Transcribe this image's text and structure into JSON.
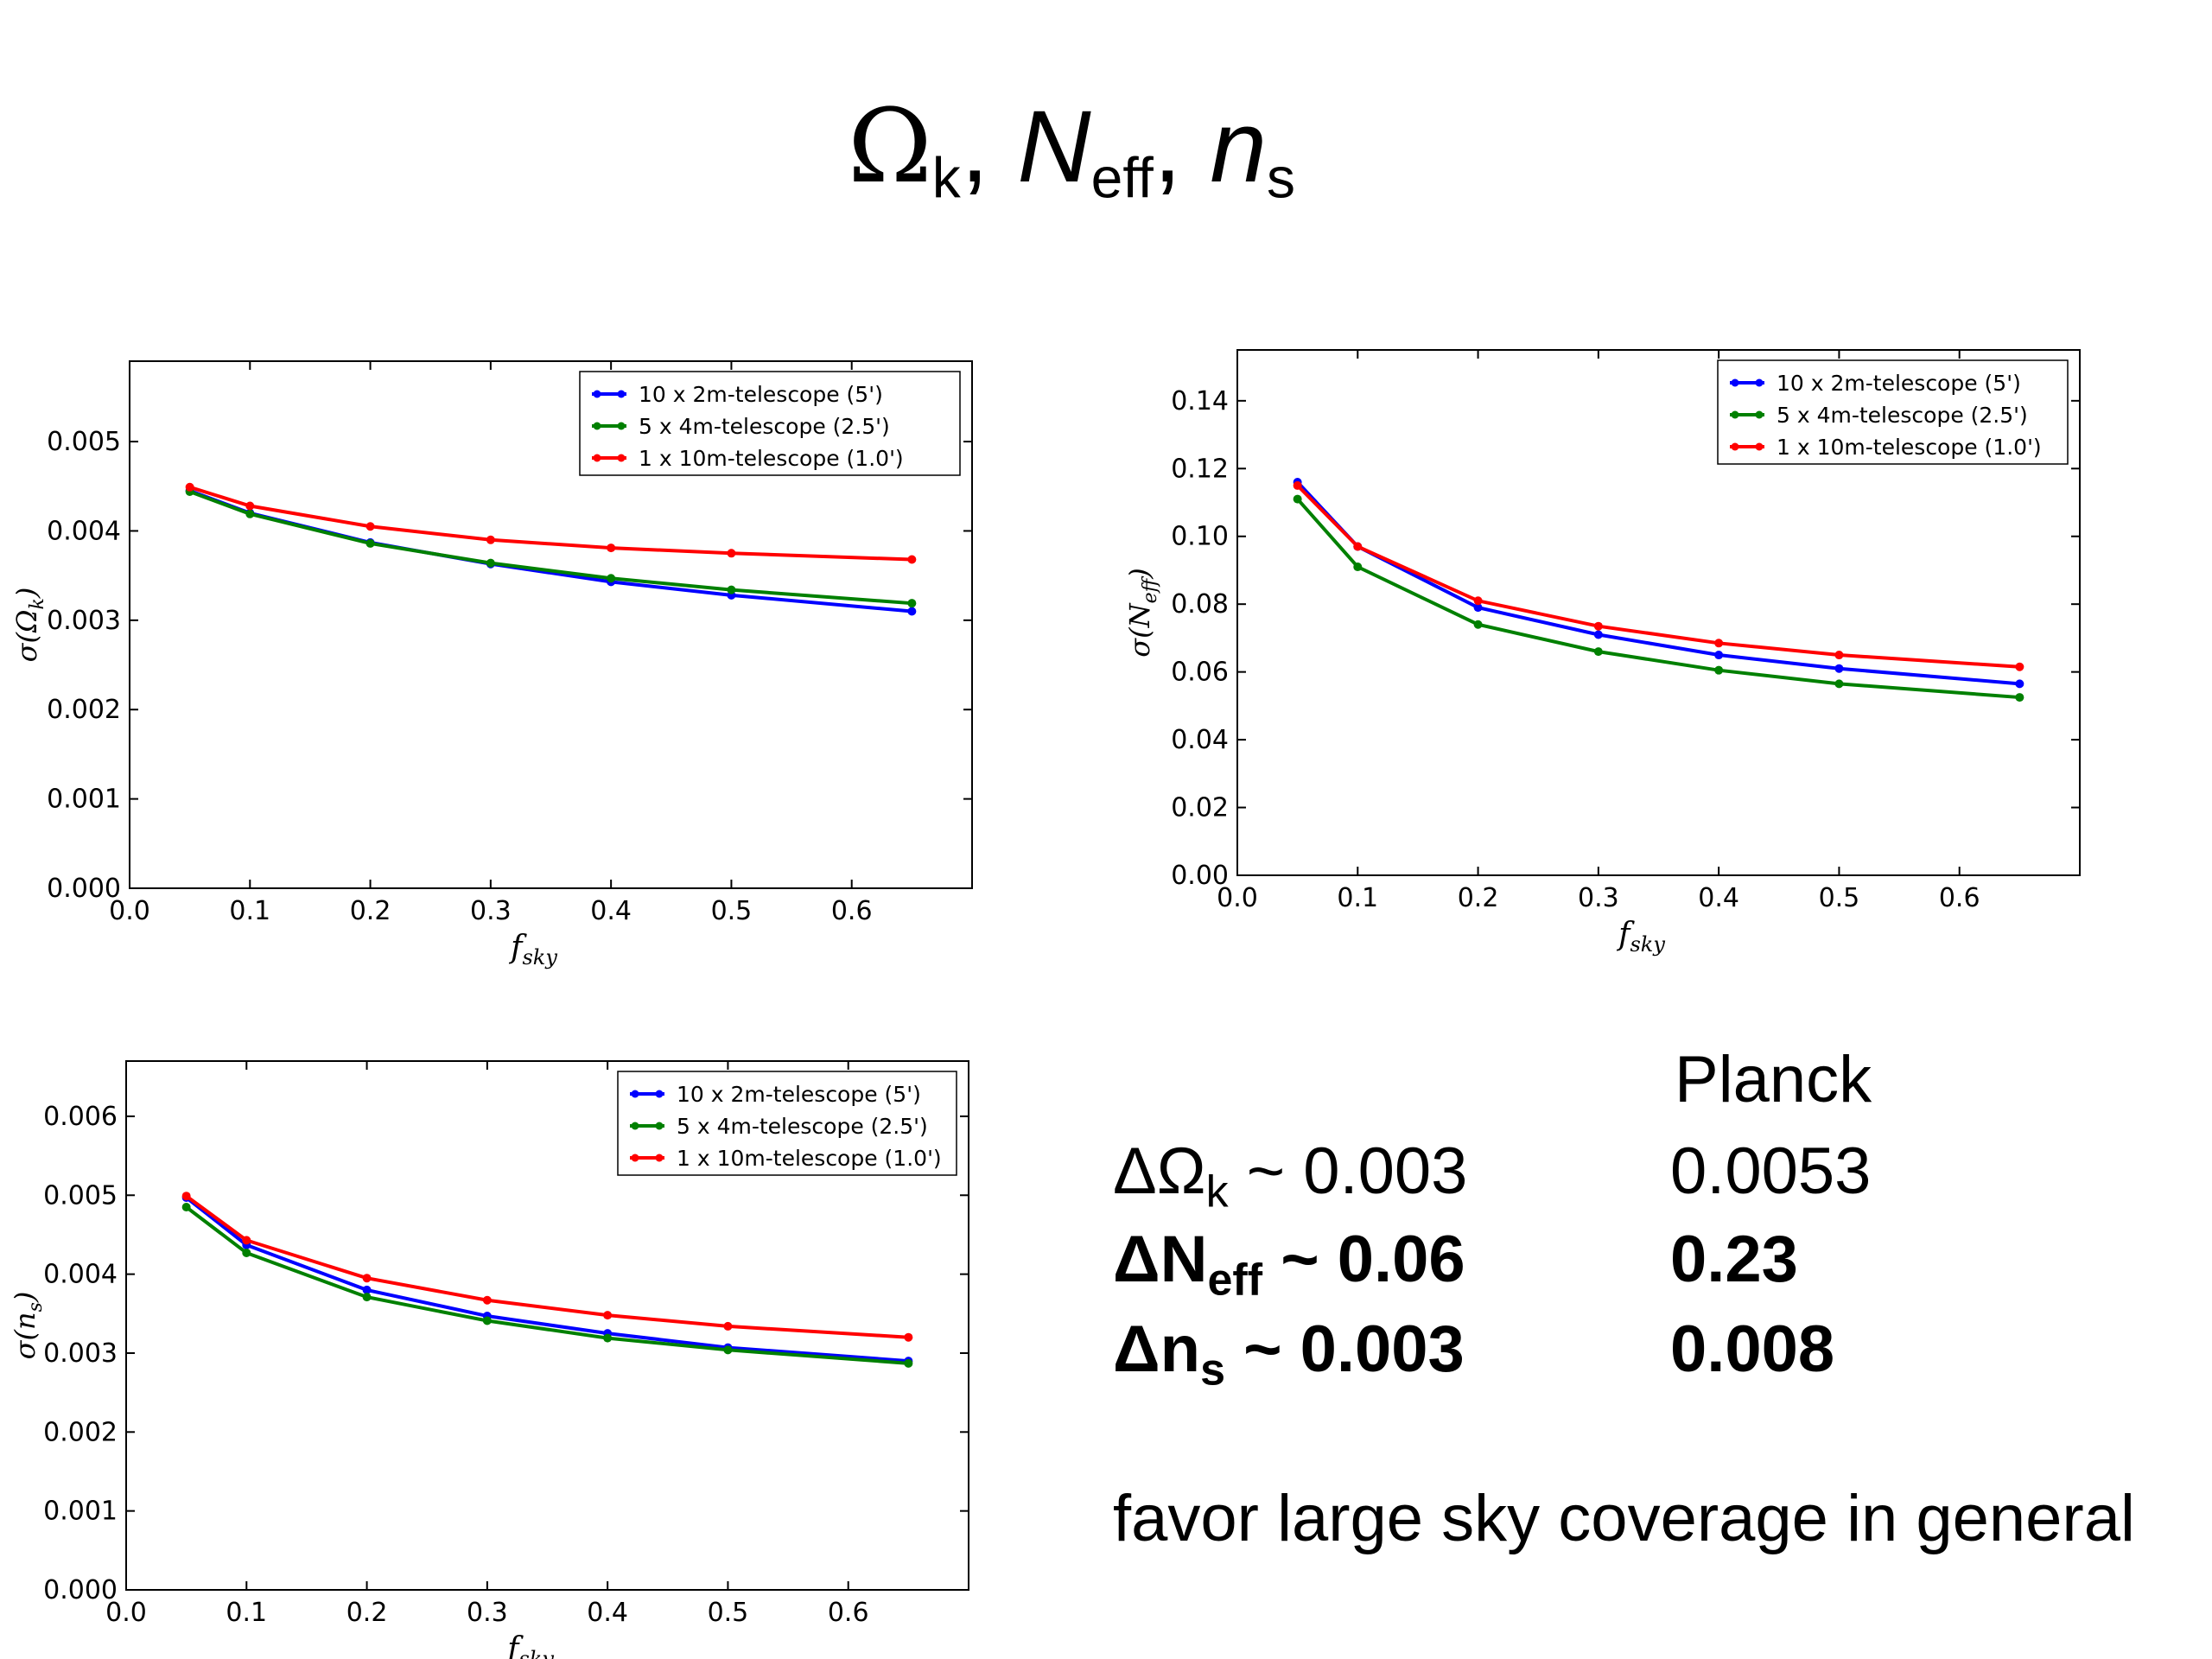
{
  "title": {
    "omega_symbol": "Ω",
    "omega_sub": "k",
    "sep1": ",",
    "neff_symbol": "N",
    "neff_sub": "eff",
    "sep2": ",",
    "ns_symbol": "n",
    "ns_sub": "s"
  },
  "chart_data": [
    {
      "type": "line",
      "xlabel_main": "f",
      "xlabel_sub": "sky",
      "ylabel_main": "σ(Ω",
      "ylabel_sub": "k",
      "ylabel_close": ")",
      "xlim": [
        0,
        0.7
      ],
      "ylim": [
        0,
        0.0059
      ],
      "xticks": [
        "0.0",
        "0.1",
        "0.2",
        "0.3",
        "0.4",
        "0.5",
        "0.6"
      ],
      "yticks": [
        "0.000",
        "0.001",
        "0.002",
        "0.003",
        "0.004",
        "0.005"
      ],
      "legend_position": "top-right",
      "x": [
        0.05,
        0.1,
        0.2,
        0.3,
        0.4,
        0.5,
        0.65
      ],
      "series": [
        {
          "name": "10 x 2m-telescope (5')",
          "color": "#0000ff",
          "values": [
            0.00445,
            0.0042,
            0.00387,
            0.00363,
            0.00343,
            0.00328,
            0.0031
          ]
        },
        {
          "name": "5 x 4m-telescope (2.5')",
          "color": "#008000",
          "values": [
            0.00444,
            0.00419,
            0.00386,
            0.00364,
            0.00347,
            0.00334,
            0.00319
          ]
        },
        {
          "name": "1 x 10m-telescope (1.0')",
          "color": "#ff0000",
          "values": [
            0.00449,
            0.00428,
            0.00405,
            0.0039,
            0.00381,
            0.00375,
            0.00368
          ]
        }
      ]
    },
    {
      "type": "line",
      "xlabel_main": "f",
      "xlabel_sub": "sky",
      "ylabel_main": "σ(N",
      "ylabel_sub": "eff",
      "ylabel_close": ")",
      "xlim": [
        0,
        0.7
      ],
      "ylim": [
        0,
        0.155
      ],
      "xticks": [
        "0.0",
        "0.1",
        "0.2",
        "0.3",
        "0.4",
        "0.5",
        "0.6"
      ],
      "yticks": [
        "0.00",
        "0.02",
        "0.04",
        "0.06",
        "0.08",
        "0.10",
        "0.12",
        "0.14"
      ],
      "legend_position": "top-right",
      "x": [
        0.05,
        0.1,
        0.2,
        0.3,
        0.4,
        0.5,
        0.65
      ],
      "series": [
        {
          "name": "10 x 2m-telescope (5')",
          "color": "#0000ff",
          "values": [
            0.116,
            0.097,
            0.079,
            0.071,
            0.065,
            0.061,
            0.0565
          ]
        },
        {
          "name": "5 x 4m-telescope (2.5')",
          "color": "#008000",
          "values": [
            0.111,
            0.091,
            0.074,
            0.066,
            0.0605,
            0.0565,
            0.0525
          ]
        },
        {
          "name": "1 x 10m-telescope (1.0')",
          "color": "#ff0000",
          "values": [
            0.115,
            0.097,
            0.081,
            0.0735,
            0.0685,
            0.065,
            0.0615
          ]
        }
      ]
    },
    {
      "type": "line",
      "xlabel_main": "f",
      "xlabel_sub": "sky",
      "ylabel_main": "σ(n",
      "ylabel_sub": "s",
      "ylabel_close": ")",
      "xlim": [
        0,
        0.7
      ],
      "ylim": [
        0,
        0.0067
      ],
      "xticks": [
        "0.0",
        "0.1",
        "0.2",
        "0.3",
        "0.4",
        "0.5",
        "0.6"
      ],
      "yticks": [
        "0.000",
        "0.001",
        "0.002",
        "0.003",
        "0.004",
        "0.005",
        "0.006"
      ],
      "legend_position": "top-right",
      "x": [
        0.05,
        0.1,
        0.2,
        0.3,
        0.4,
        0.5,
        0.65
      ],
      "series": [
        {
          "name": "10 x 2m-telescope (5')",
          "color": "#0000ff",
          "values": [
            0.00497,
            0.00437,
            0.0038,
            0.00347,
            0.00325,
            0.00307,
            0.0029
          ]
        },
        {
          "name": "5 x 4m-telescope (2.5')",
          "color": "#008000",
          "values": [
            0.00485,
            0.00427,
            0.00371,
            0.00341,
            0.00319,
            0.00304,
            0.00287
          ]
        },
        {
          "name": "1 x 10m-telescope (1.0')",
          "color": "#ff0000",
          "values": [
            0.00499,
            0.00443,
            0.00395,
            0.00367,
            0.00348,
            0.00334,
            0.0032
          ]
        }
      ]
    }
  ],
  "summary": {
    "planck_header": "Planck",
    "rows": [
      {
        "delta": "Δ",
        "symbol": "Ω",
        "sub": "k",
        "forecast": " ~ 0.003",
        "planck": "0.0053",
        "bold": false
      },
      {
        "delta": "Δ",
        "symbol": "N",
        "sub": "eff",
        "forecast": " ~ 0.06",
        "planck": "0.23",
        "bold": true
      },
      {
        "delta": "Δ",
        "symbol": "n",
        "sub": "s",
        "forecast": " ~ 0.003",
        "planck": "0.008",
        "bold": true
      }
    ],
    "note": "favor large sky coverage in general"
  }
}
